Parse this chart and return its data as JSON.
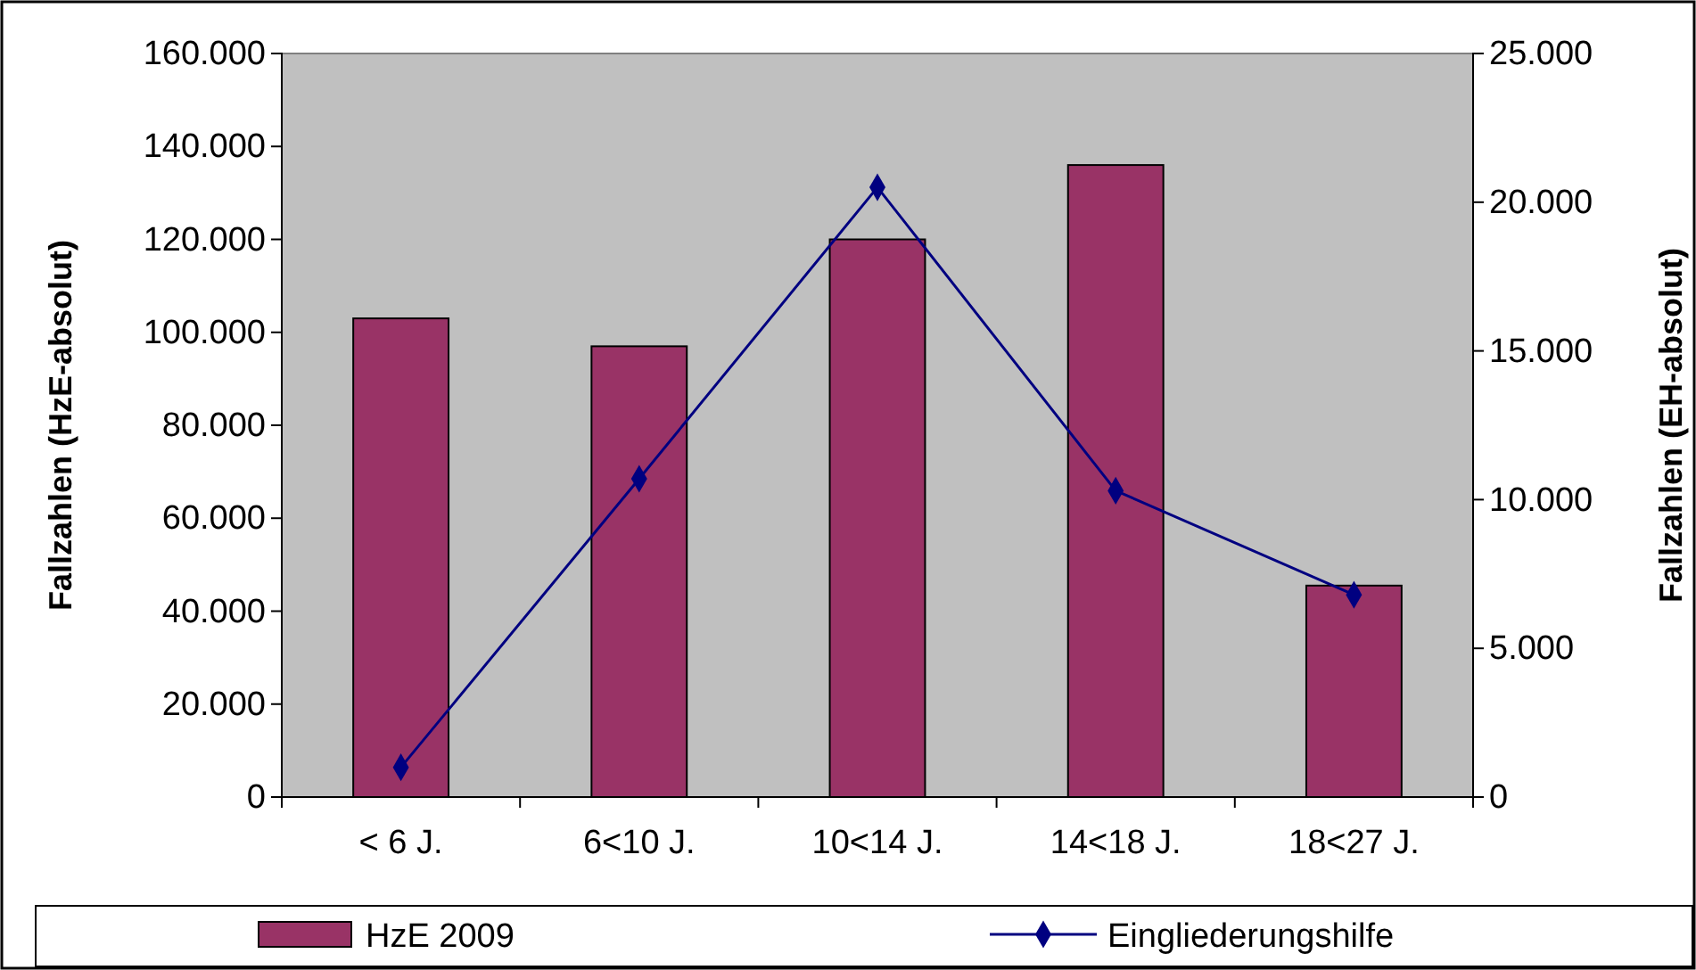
{
  "chart_data": {
    "type": "bar",
    "ylabel": "Fallzahlen (HzE-absolut)",
    "y2label": "Fallzahlen (EH-absolut)",
    "categories": [
      "< 6 J.",
      "6<10 J.",
      "10<14 J.",
      "14<18 J.",
      "18<27 J."
    ],
    "series": [
      {
        "name": "HzE 2009",
        "color": "#993366",
        "values": [
          103000,
          97000,
          120000,
          136000,
          45500
        ]
      },
      {
        "name": "Eingliederungshilfe",
        "type": "line",
        "axis": "y2",
        "color": "#000080",
        "values": [
          1000,
          10700,
          20500,
          10300,
          6800
        ]
      }
    ],
    "ylim": [
      0,
      160000
    ],
    "yticks": [
      {
        "value": 0,
        "label": "0"
      },
      {
        "value": 20000,
        "label": "20.000"
      },
      {
        "value": 40000,
        "label": "40.000"
      },
      {
        "value": 60000,
        "label": "60.000"
      },
      {
        "value": 80000,
        "label": "80.000"
      },
      {
        "value": 100000,
        "label": "100.000"
      },
      {
        "value": 120000,
        "label": "120.000"
      },
      {
        "value": 140000,
        "label": "140.000"
      },
      {
        "value": 160000,
        "label": "160.000"
      }
    ],
    "y2lim": [
      0,
      25000
    ],
    "y2ticks": [
      {
        "value": 0,
        "label": "0"
      },
      {
        "value": 5000,
        "label": "5.000"
      },
      {
        "value": 10000,
        "label": "10.000"
      },
      {
        "value": 15000,
        "label": "15.000"
      },
      {
        "value": 20000,
        "label": "20.000"
      },
      {
        "value": 25000,
        "label": "25.000"
      }
    ],
    "legend": "bottom",
    "marker": "diamond",
    "line_style": "solid",
    "grid": false
  }
}
